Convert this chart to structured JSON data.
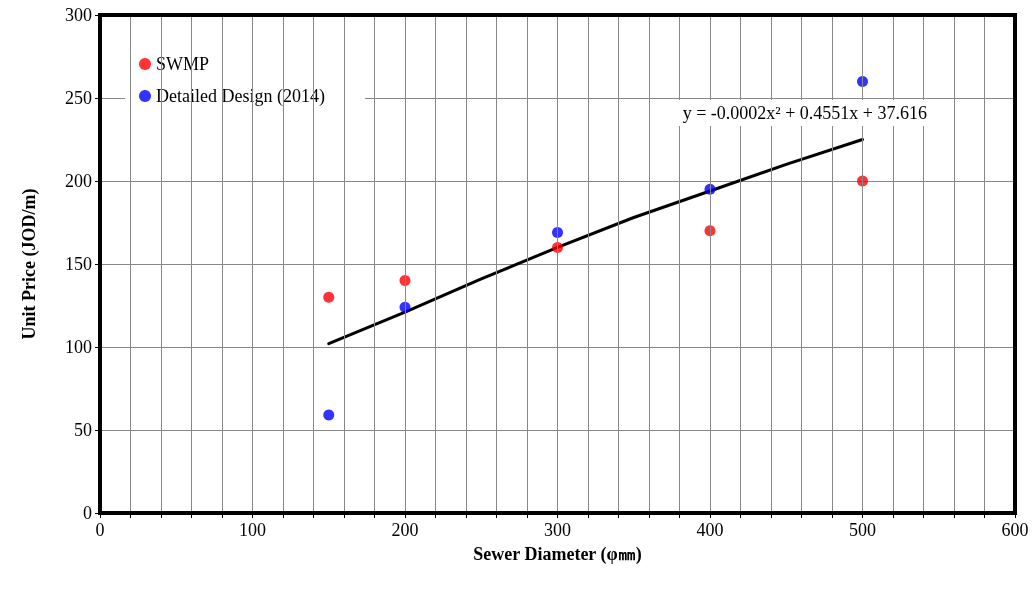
{
  "chart_data": {
    "type": "scatter",
    "xlabel": "Sewer Diameter (φ㎜)",
    "ylabel": "Unit Price (JOD/m)",
    "series": [
      {
        "name": "SWMP",
        "color": "#ff0000",
        "x": [
          150,
          200,
          300,
          400,
          500
        ],
        "values": [
          130,
          140,
          160,
          170,
          200
        ]
      },
      {
        "name": "Detailed Design (2014)",
        "color": "#0000ff",
        "x": [
          150,
          200,
          300,
          400,
          500
        ],
        "values": [
          59,
          124,
          169,
          195,
          260
        ]
      },
      {
        "type": "line",
        "marker": "none",
        "color": "#000000",
        "x": [
          150,
          200,
          250,
          300,
          350,
          400,
          450,
          500
        ],
        "values": [
          102,
          121,
          141,
          160,
          178,
          194,
          210,
          225
        ]
      }
    ],
    "annotations": [
      "y = -0.0002x² + 0.4551x + 37.616"
    ],
    "xlim": [
      0,
      600
    ],
    "xticks": [
      0,
      {
        "value": 20,
        "label": null
      },
      {
        "value": 40,
        "label": null
      },
      {
        "value": 60,
        "label": null
      },
      {
        "value": 80,
        "label": null
      },
      100,
      {
        "value": 120,
        "label": null
      },
      {
        "value": 140,
        "label": null
      },
      {
        "value": 160,
        "label": null
      },
      {
        "value": 180,
        "label": null
      },
      200,
      {
        "value": 220,
        "label": null
      },
      {
        "value": 240,
        "label": null
      },
      {
        "value": 260,
        "label": null
      },
      {
        "value": 280,
        "label": null
      },
      300,
      {
        "value": 320,
        "label": null
      },
      {
        "value": 340,
        "label": null
      },
      {
        "value": 360,
        "label": null
      },
      {
        "value": 380,
        "label": null
      },
      400,
      {
        "value": 420,
        "label": null
      },
      {
        "value": 440,
        "label": null
      },
      {
        "value": 460,
        "label": null
      },
      {
        "value": 480,
        "label": null
      },
      500,
      {
        "value": 520,
        "label": null
      },
      {
        "value": 540,
        "label": null
      },
      {
        "value": 560,
        "label": null
      },
      {
        "value": 580,
        "label": null
      },
      600
    ],
    "ylim": [
      0,
      300
    ],
    "yticks": [
      0,
      50,
      100,
      150,
      200,
      250,
      300
    ],
    "grid": true,
    "legend": "top left",
    "marker": "circle",
    "line_style": "solid"
  }
}
